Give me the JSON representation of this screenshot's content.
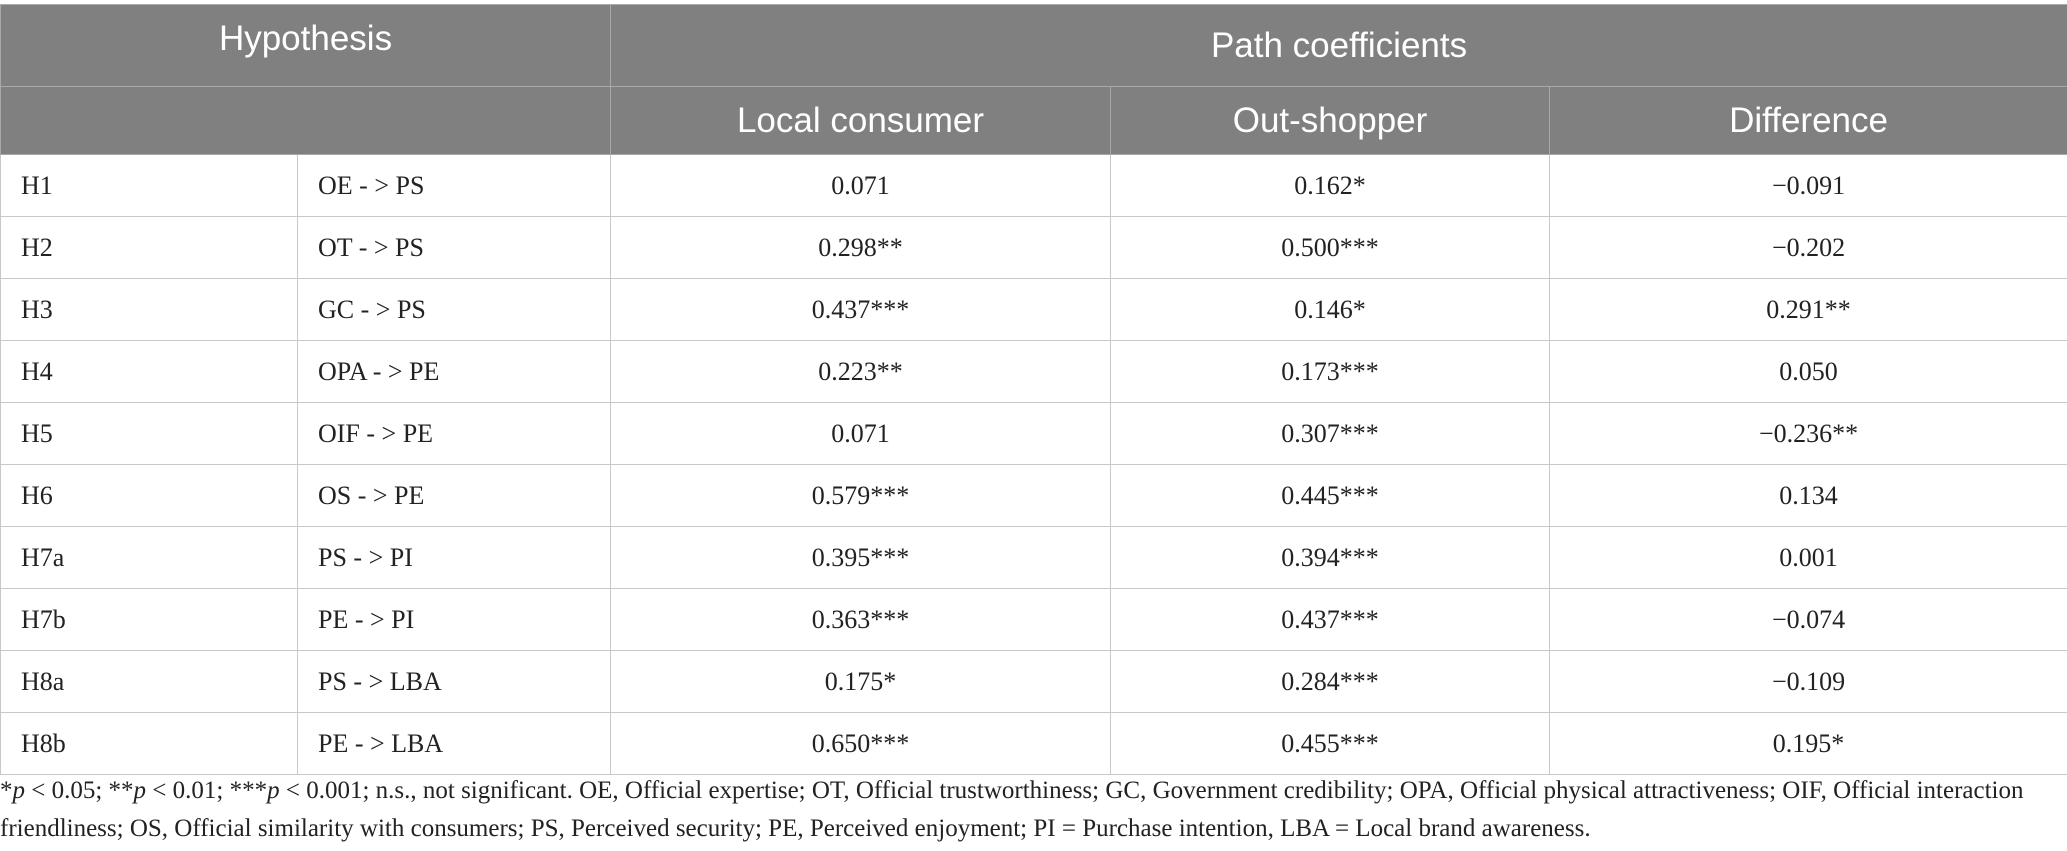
{
  "table": {
    "header": {
      "group": "Hypothesis",
      "span": "Path coefficients",
      "columns": [
        "Local consumer",
        "Out-shopper",
        "Difference"
      ]
    },
    "rows": [
      [
        "H1",
        "OE - > PS",
        "0.071",
        "0.162*",
        "−0.091"
      ],
      [
        "H2",
        "OT - > PS",
        "0.298**",
        "0.500***",
        "−0.202"
      ],
      [
        "H3",
        "GC - > PS",
        "0.437***",
        "0.146*",
        "0.291**"
      ],
      [
        "H4",
        "OPA - > PE",
        "0.223**",
        "0.173***",
        "0.050"
      ],
      [
        "H5",
        "OIF - > PE",
        "0.071",
        "0.307***",
        "−0.236**"
      ],
      [
        "H6",
        "OS - > PE",
        "0.579***",
        "0.445***",
        "0.134"
      ],
      [
        "H7a",
        "PS - > PI",
        "0.395***",
        "0.394***",
        "0.001"
      ],
      [
        "H7b",
        "PE - > PI",
        "0.363***",
        "0.437***",
        "−0.074"
      ],
      [
        "H8a",
        "PS - > LBA",
        "0.175*",
        "0.284***",
        "−0.109"
      ],
      [
        "H8b",
        "PE - > LBA",
        "0.650***",
        "0.455***",
        "0.195*"
      ]
    ]
  },
  "footnote": [
    "*",
    "p",
    " < 0.05; **",
    "p",
    " < 0.01; ***",
    "p",
    " < 0.001; n.s., not significant. OE, Official expertise; OT, Official trustworthiness; GC, Government credibility; OPA, Official physical attractiveness; OIF, Official interaction friendliness; OS, Official similarity with consumers; PS, Perceived security; PE, Perceived enjoyment; PI = Purchase intention, LBA = Local brand awareness."
  ]
}
